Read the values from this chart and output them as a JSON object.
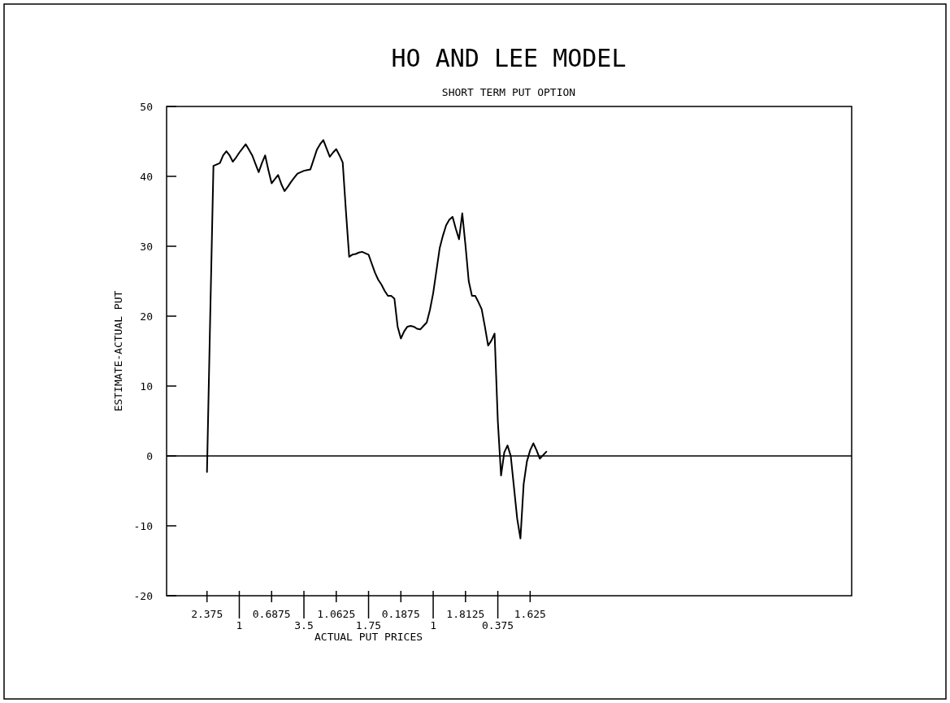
{
  "chart_data": {
    "type": "line",
    "title": "HO AND LEE MODEL",
    "subtitle": "SHORT TERM PUT OPTION",
    "xlabel": "ACTUAL PUT PRICES",
    "ylabel": "ESTIMATE-ACTUAL PUT",
    "categories": [
      null,
      null,
      null,
      null,
      null,
      null,
      null,
      null,
      null,
      null,
      null,
      null,
      "2.375",
      null,
      null,
      null,
      null,
      null,
      null,
      null,
      null,
      null,
      "1",
      null,
      null,
      null,
      null,
      null,
      null,
      null,
      null,
      null,
      "0.6875",
      null,
      null,
      null,
      null,
      null,
      null,
      null,
      null,
      null,
      "3.5",
      null,
      null,
      null,
      null,
      null,
      null,
      null,
      null,
      null,
      "1.0625",
      null,
      null,
      null,
      null,
      null,
      null,
      null,
      null,
      null,
      "1.75",
      null,
      null,
      null,
      null,
      null,
      null,
      null,
      null,
      null,
      "0.1875",
      null,
      null,
      null,
      null,
      null,
      null,
      null,
      null,
      null,
      "1",
      null,
      null,
      null,
      null,
      null,
      null,
      null,
      null,
      null,
      "1.8125",
      null,
      null,
      null,
      null,
      null,
      null,
      null,
      null,
      null,
      "0.375",
      null,
      null,
      null,
      null,
      null,
      null,
      null,
      null,
      null,
      "1.625",
      null,
      null,
      null,
      null,
      null,
      null,
      null,
      null,
      null,
      null,
      null,
      null,
      null,
      null,
      null,
      null,
      null,
      null,
      null,
      null,
      null,
      null,
      null,
      null,
      null,
      null,
      null,
      null,
      null,
      null,
      null,
      null,
      null,
      null,
      null,
      null,
      null,
      null,
      null,
      null,
      null,
      null,
      null,
      null,
      null,
      null,
      null,
      null,
      null,
      null,
      null,
      null,
      null,
      null,
      null,
      null,
      null,
      null,
      null,
      null,
      null,
      null,
      null,
      null,
      null,
      null,
      null,
      null,
      null,
      null,
      null,
      null,
      null,
      null,
      null,
      null,
      null,
      null,
      null,
      null,
      null,
      null,
      null,
      null,
      null,
      null,
      null,
      null,
      null,
      null,
      null,
      null,
      null,
      null,
      null,
      null,
      null,
      null,
      null
    ],
    "values": [
      null,
      null,
      null,
      null,
      null,
      null,
      null,
      null,
      null,
      null,
      null,
      null,
      -2.3,
      20,
      41.5,
      41.7,
      41.9,
      43.0,
      43.6,
      43.0,
      42.1,
      42.7,
      43.4,
      44.0,
      44.6,
      43.8,
      43.0,
      41.8,
      40.6,
      41.9,
      43.0,
      40.9,
      39.0,
      39.6,
      40.2,
      38.9,
      37.9,
      38.5,
      39.2,
      39.8,
      40.4,
      40.6,
      40.8,
      40.9,
      41.0,
      42.4,
      43.8,
      44.6,
      45.2,
      44.0,
      42.8,
      43.4,
      43.9,
      43.0,
      42.0,
      35.0,
      28.5,
      28.8,
      28.9,
      29.1,
      29.2,
      29.0,
      28.8,
      27.5,
      26.2,
      25.2,
      24.5,
      23.6,
      22.9,
      22.9,
      22.5,
      18.5,
      16.8,
      17.8,
      18.5,
      18.6,
      18.5,
      18.2,
      18.1,
      18.6,
      19.1,
      20.9,
      23.3,
      26.5,
      29.7,
      31.5,
      33.0,
      33.8,
      34.2,
      32.5,
      31.0,
      34.7,
      30.1,
      25.0,
      22.9,
      22.9,
      22.0,
      21.0,
      18.5,
      15.8,
      16.5,
      17.5,
      5.0,
      -2.8,
      0.5,
      1.5,
      0.0,
      -4.5,
      -9.0,
      -11.8,
      -4.0,
      -0.8,
      0.8,
      1.8,
      0.8,
      -0.4,
      0.1,
      0.6,
      null,
      null,
      null,
      null,
      null,
      null,
      null,
      null,
      null,
      null,
      null,
      null,
      null,
      null,
      null,
      null,
      null,
      null,
      null,
      null,
      null,
      null,
      null,
      null,
      null,
      null,
      null,
      null,
      null,
      null,
      null,
      null,
      null,
      null,
      null,
      null,
      null,
      null,
      null,
      null,
      null,
      null,
      null,
      null,
      null,
      null,
      null,
      null,
      null,
      null,
      null,
      null,
      null,
      null,
      null,
      null,
      null,
      null,
      null,
      null,
      null,
      null,
      null,
      null,
      null,
      null,
      null,
      null,
      null,
      null,
      null,
      null,
      null,
      null,
      null,
      null,
      null,
      null,
      null,
      null,
      null,
      null,
      null,
      null,
      null,
      null,
      null,
      null,
      null,
      null,
      null,
      null,
      null,
      null
    ],
    "color": "#000000",
    "ylim": [
      -20,
      50
    ],
    "yticks": [
      -20,
      -10,
      0,
      10,
      20,
      30,
      40,
      50
    ],
    "ref_lines": [
      {
        "axis": "y",
        "value": 0
      }
    ]
  }
}
